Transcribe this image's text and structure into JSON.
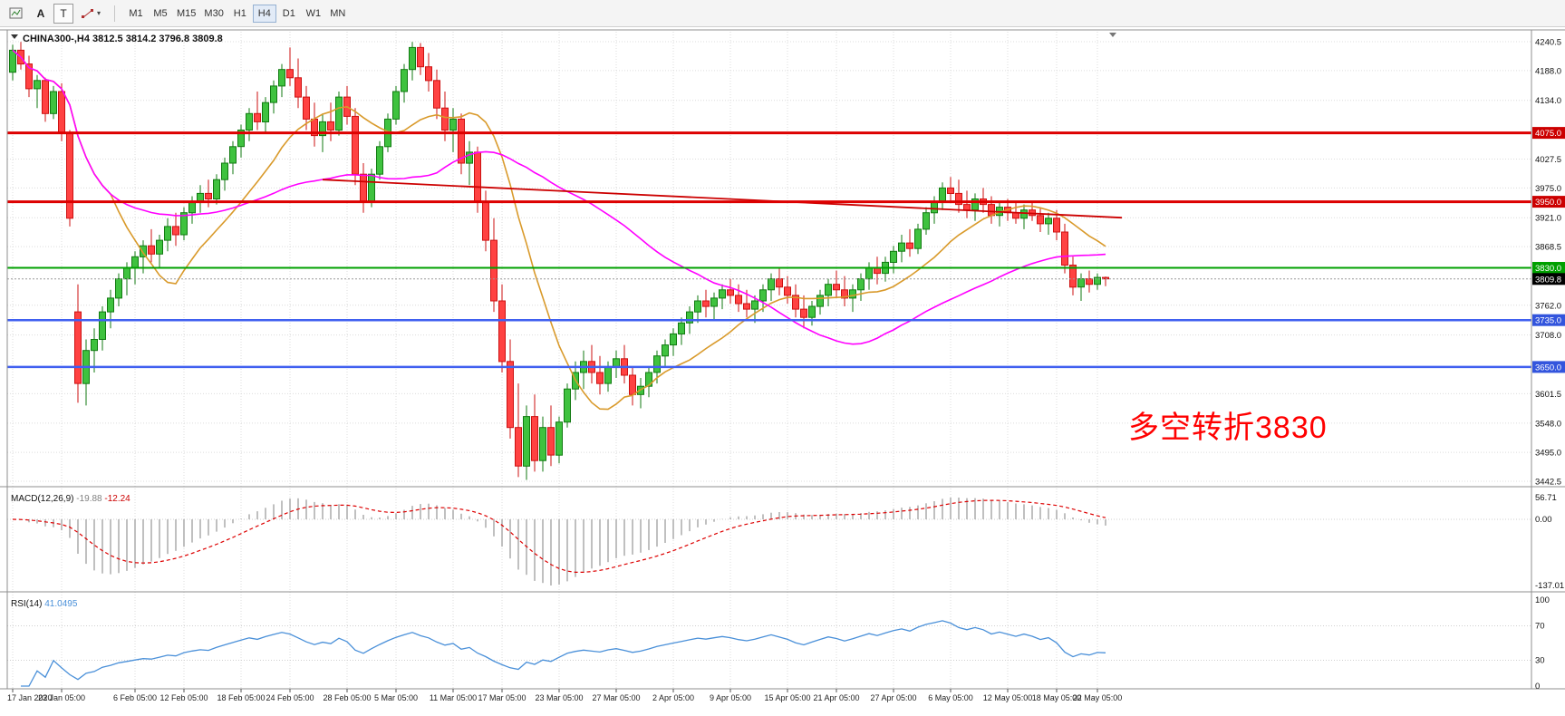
{
  "toolbar": {
    "a_button": "A",
    "t_button": "T",
    "timeframes": [
      "M1",
      "M5",
      "M15",
      "M30",
      "H1",
      "H4",
      "D1",
      "W1",
      "MN"
    ],
    "active_timeframe": "H4"
  },
  "chart": {
    "title": {
      "symbol": "CHINA300-,H4",
      "open": "3812.5",
      "high": "3814.2",
      "low": "3796.8",
      "close": "3809.8"
    },
    "annotation": {
      "text": "多空转折3830",
      "color": "#ff0000"
    },
    "price_axis": {
      "max": 4240.5,
      "min": 3442.5,
      "labels": [
        4240.5,
        4188.0,
        4134.0,
        4027.5,
        3975.0,
        3921.0,
        3868.5,
        3762.0,
        3708.0,
        3601.5,
        3548.0,
        3495.0,
        3442.5
      ]
    },
    "hlines": [
      {
        "price": 4075.0,
        "label": "4075.0",
        "color": "#dd0000",
        "badge": "#cc0000",
        "width": 3
      },
      {
        "price": 3950.0,
        "label": "3950.0",
        "color": "#dd0000",
        "badge": "#cc0000",
        "width": 3
      },
      {
        "price": 3830.0,
        "label": "3830.0",
        "color": "#00a000",
        "badge": "#00a000",
        "width": 2
      },
      {
        "price": 3735.0,
        "label": "3735.0",
        "color": "#4060f0",
        "badge": "#3355dd",
        "width": 2.5
      },
      {
        "price": 3650.0,
        "label": "3650.0",
        "color": "#4060f0",
        "badge": "#3355dd",
        "width": 2.5
      }
    ],
    "bid": {
      "price": 3809.8,
      "label": "3809.8",
      "badge": "#000000"
    },
    "trendline": {
      "i1": 38,
      "p1": 3990,
      "i2": 136,
      "p2": 3921,
      "color": "#cc0000"
    }
  },
  "chart_data": {
    "type": "candlestick",
    "symbol": "CHINA300",
    "timeframe": "H4",
    "up_color": "#3fc23f",
    "down_color": "#ff4242",
    "up_stroke": "#117a11",
    "down_stroke": "#cc1111",
    "ma_fast": {
      "period": 13,
      "color": "#d99a2b"
    },
    "ma_slow": {
      "period": 45,
      "color": "#ff00ff"
    },
    "candles": [
      [
        4185,
        4235,
        4170,
        4225
      ],
      [
        4225,
        4240,
        4190,
        4200
      ],
      [
        4200,
        4215,
        4140,
        4155
      ],
      [
        4155,
        4180,
        4120,
        4170
      ],
      [
        4170,
        4175,
        4095,
        4110
      ],
      [
        4110,
        4160,
        4100,
        4150
      ],
      [
        4150,
        4165,
        4060,
        4075
      ],
      [
        4075,
        4080,
        3905,
        3920
      ],
      [
        3750,
        3800,
        3585,
        3620
      ],
      [
        3620,
        3700,
        3580,
        3680
      ],
      [
        3680,
        3720,
        3640,
        3700
      ],
      [
        3700,
        3760,
        3680,
        3750
      ],
      [
        3750,
        3790,
        3720,
        3775
      ],
      [
        3775,
        3820,
        3760,
        3810
      ],
      [
        3810,
        3840,
        3780,
        3830
      ],
      [
        3830,
        3860,
        3800,
        3850
      ],
      [
        3850,
        3880,
        3820,
        3870
      ],
      [
        3870,
        3900,
        3840,
        3855
      ],
      [
        3855,
        3890,
        3830,
        3880
      ],
      [
        3880,
        3920,
        3860,
        3905
      ],
      [
        3905,
        3930,
        3870,
        3890
      ],
      [
        3890,
        3940,
        3880,
        3930
      ],
      [
        3930,
        3960,
        3910,
        3950
      ],
      [
        3950,
        3980,
        3930,
        3965
      ],
      [
        3965,
        3990,
        3940,
        3955
      ],
      [
        3955,
        4000,
        3945,
        3990
      ],
      [
        3990,
        4030,
        3970,
        4020
      ],
      [
        4020,
        4060,
        4000,
        4050
      ],
      [
        4050,
        4090,
        4030,
        4080
      ],
      [
        4080,
        4120,
        4060,
        4110
      ],
      [
        4110,
        4150,
        4080,
        4095
      ],
      [
        4095,
        4140,
        4075,
        4130
      ],
      [
        4130,
        4170,
        4110,
        4160
      ],
      [
        4160,
        4200,
        4140,
        4190
      ],
      [
        4190,
        4230,
        4160,
        4175
      ],
      [
        4175,
        4210,
        4120,
        4140
      ],
      [
        4140,
        4160,
        4080,
        4100
      ],
      [
        4100,
        4130,
        4050,
        4070
      ],
      [
        4070,
        4110,
        4040,
        4095
      ],
      [
        4095,
        4130,
        4060,
        4080
      ],
      [
        4080,
        4150,
        4070,
        4140
      ],
      [
        4140,
        4160,
        4090,
        4105
      ],
      [
        4105,
        4120,
        3980,
        4000
      ],
      [
        4000,
        4020,
        3930,
        3950
      ],
      [
        3950,
        4010,
        3940,
        4000
      ],
      [
        4000,
        4060,
        3990,
        4050
      ],
      [
        4050,
        4110,
        4040,
        4100
      ],
      [
        4100,
        4160,
        4090,
        4150
      ],
      [
        4150,
        4200,
        4130,
        4190
      ],
      [
        4190,
        4240,
        4170,
        4230
      ],
      [
        4230,
        4238,
        4180,
        4195
      ],
      [
        4195,
        4220,
        4150,
        4170
      ],
      [
        4170,
        4190,
        4100,
        4120
      ],
      [
        4120,
        4150,
        4060,
        4080
      ],
      [
        4080,
        4120,
        4040,
        4100
      ],
      [
        4100,
        4110,
        4000,
        4020
      ],
      [
        4020,
        4060,
        3980,
        4040
      ],
      [
        4040,
        4050,
        3930,
        3950
      ],
      [
        3950,
        3970,
        3860,
        3880
      ],
      [
        3880,
        3920,
        3750,
        3770
      ],
      [
        3770,
        3800,
        3640,
        3660
      ],
      [
        3660,
        3700,
        3520,
        3540
      ],
      [
        3540,
        3620,
        3450,
        3470
      ],
      [
        3470,
        3580,
        3445,
        3560
      ],
      [
        3560,
        3600,
        3460,
        3480
      ],
      [
        3480,
        3560,
        3460,
        3540
      ],
      [
        3540,
        3580,
        3470,
        3490
      ],
      [
        3490,
        3560,
        3475,
        3550
      ],
      [
        3550,
        3620,
        3540,
        3610
      ],
      [
        3610,
        3660,
        3590,
        3640
      ],
      [
        3640,
        3680,
        3610,
        3660
      ],
      [
        3660,
        3690,
        3620,
        3640
      ],
      [
        3640,
        3670,
        3600,
        3620
      ],
      [
        3620,
        3660,
        3605,
        3650
      ],
      [
        3650,
        3680,
        3630,
        3665
      ],
      [
        3665,
        3690,
        3620,
        3635
      ],
      [
        3635,
        3650,
        3580,
        3600
      ],
      [
        3600,
        3630,
        3575,
        3615
      ],
      [
        3615,
        3650,
        3595,
        3640
      ],
      [
        3640,
        3680,
        3620,
        3670
      ],
      [
        3670,
        3700,
        3650,
        3690
      ],
      [
        3690,
        3720,
        3670,
        3710
      ],
      [
        3710,
        3740,
        3690,
        3730
      ],
      [
        3730,
        3760,
        3710,
        3750
      ],
      [
        3750,
        3780,
        3730,
        3770
      ],
      [
        3770,
        3790,
        3740,
        3760
      ],
      [
        3760,
        3785,
        3735,
        3775
      ],
      [
        3775,
        3800,
        3755,
        3790
      ],
      [
        3790,
        3810,
        3765,
        3780
      ],
      [
        3780,
        3800,
        3750,
        3765
      ],
      [
        3765,
        3790,
        3740,
        3755
      ],
      [
        3755,
        3780,
        3730,
        3770
      ],
      [
        3770,
        3800,
        3750,
        3790
      ],
      [
        3790,
        3820,
        3770,
        3810
      ],
      [
        3810,
        3830,
        3780,
        3795
      ],
      [
        3795,
        3815,
        3765,
        3780
      ],
      [
        3780,
        3800,
        3740,
        3755
      ],
      [
        3755,
        3780,
        3720,
        3740
      ],
      [
        3740,
        3770,
        3725,
        3760
      ],
      [
        3760,
        3790,
        3745,
        3780
      ],
      [
        3780,
        3810,
        3760,
        3800
      ],
      [
        3800,
        3825,
        3775,
        3790
      ],
      [
        3790,
        3815,
        3760,
        3775
      ],
      [
        3775,
        3800,
        3750,
        3790
      ],
      [
        3790,
        3820,
        3770,
        3810
      ],
      [
        3810,
        3840,
        3790,
        3830
      ],
      [
        3830,
        3850,
        3800,
        3820
      ],
      [
        3820,
        3850,
        3805,
        3840
      ],
      [
        3840,
        3870,
        3820,
        3860
      ],
      [
        3860,
        3890,
        3840,
        3875
      ],
      [
        3875,
        3900,
        3850,
        3865
      ],
      [
        3865,
        3910,
        3855,
        3900
      ],
      [
        3900,
        3940,
        3890,
        3930
      ],
      [
        3930,
        3960,
        3910,
        3950
      ],
      [
        3950,
        3985,
        3935,
        3975
      ],
      [
        3975,
        3995,
        3950,
        3965
      ],
      [
        3965,
        3990,
        3930,
        3945
      ],
      [
        3945,
        3970,
        3920,
        3935
      ],
      [
        3935,
        3965,
        3915,
        3955
      ],
      [
        3955,
        3975,
        3930,
        3945
      ],
      [
        3945,
        3960,
        3910,
        3925
      ],
      [
        3925,
        3950,
        3905,
        3940
      ],
      [
        3940,
        3955,
        3915,
        3930
      ],
      [
        3930,
        3950,
        3910,
        3920
      ],
      [
        3920,
        3945,
        3900,
        3935
      ],
      [
        3935,
        3950,
        3915,
        3925
      ],
      [
        3925,
        3940,
        3895,
        3910
      ],
      [
        3910,
        3930,
        3890,
        3920
      ],
      [
        3920,
        3935,
        3880,
        3895
      ],
      [
        3895,
        3910,
        3820,
        3835
      ],
      [
        3835,
        3850,
        3780,
        3795
      ],
      [
        3795,
        3820,
        3770,
        3810
      ],
      [
        3810,
        3825,
        3785,
        3800
      ],
      [
        3800,
        3820,
        3790,
        3812.5
      ],
      [
        3812.5,
        3814.2,
        3796.8,
        3809.8
      ]
    ],
    "date_labels": [
      {
        "i": 0,
        "t": "17 Jan 2020"
      },
      {
        "i": 6,
        "t": "23 Jan 05:00"
      },
      {
        "i": 15,
        "t": "6 Feb 05:00"
      },
      {
        "i": 21,
        "t": "12 Feb 05:00"
      },
      {
        "i": 28,
        "t": "18 Feb 05:00"
      },
      {
        "i": 34,
        "t": "24 Feb 05:00"
      },
      {
        "i": 41,
        "t": "28 Feb 05:00"
      },
      {
        "i": 47,
        "t": "5 Mar 05:00"
      },
      {
        "i": 54,
        "t": "11 Mar 05:00"
      },
      {
        "i": 60,
        "t": "17 Mar 05:00"
      },
      {
        "i": 67,
        "t": "23 Mar 05:00"
      },
      {
        "i": 74,
        "t": "27 Mar 05:00"
      },
      {
        "i": 81,
        "t": "2 Apr 05:00"
      },
      {
        "i": 88,
        "t": "9 Apr 05:00"
      },
      {
        "i": 95,
        "t": "15 Apr 05:00"
      },
      {
        "i": 101,
        "t": "21 Apr 05:00"
      },
      {
        "i": 108,
        "t": "27 Apr 05:00"
      },
      {
        "i": 115,
        "t": "6 May 05:00"
      },
      {
        "i": 122,
        "t": "12 May 05:00"
      },
      {
        "i": 128,
        "t": "18 May 05:00"
      },
      {
        "i": 133,
        "t": "22 May 05:00"
      }
    ],
    "macd": {
      "label": "MACD(12,26,9)",
      "main_value": "-19.88",
      "signal_value": "-12.24",
      "params": [
        12,
        26,
        9
      ],
      "axis_labels": [
        "56.71",
        "0.00",
        "-137.01"
      ],
      "hist_color": "#b0b0b0",
      "signal_color": "#dd0000"
    },
    "rsi": {
      "label": "RSI(14)",
      "value": "41.0495",
      "period": 14,
      "color": "#4a90d9",
      "axis_labels": [
        "100",
        "70",
        "30",
        "0"
      ],
      "axis_values": [
        100,
        70,
        30,
        0
      ],
      "levels": [
        70,
        30
      ]
    }
  }
}
